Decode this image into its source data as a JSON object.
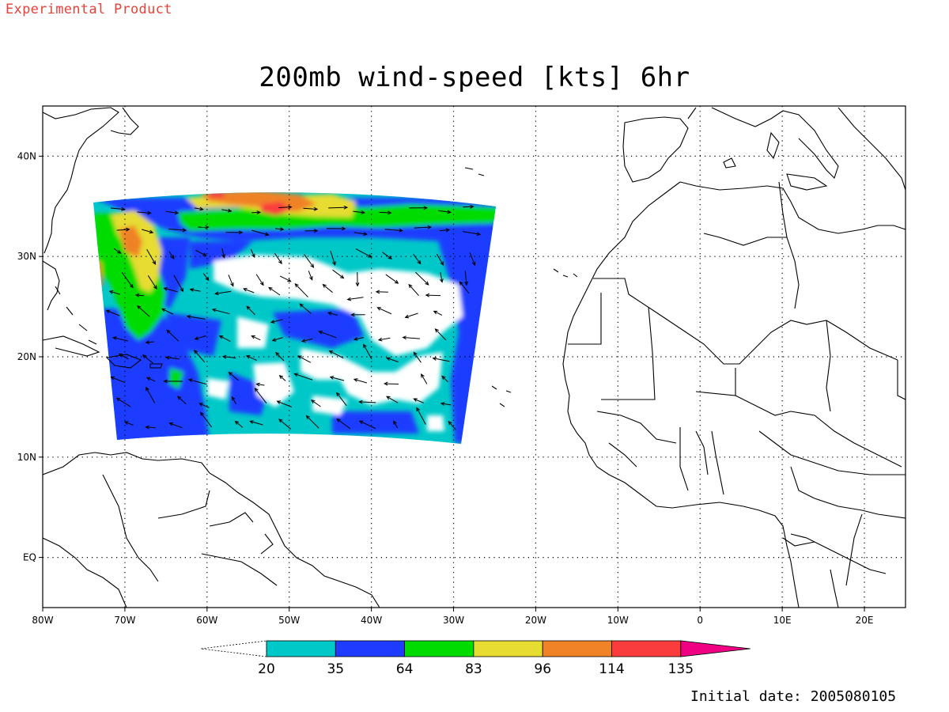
{
  "watermark": "Experimental Product",
  "title": "200mb wind-speed [kts] 6hr",
  "initial_date": {
    "label": "Initial date:",
    "value": "2005080105"
  },
  "map": {
    "lon_range": [
      -80,
      25
    ],
    "lat_range": [
      -5,
      45
    ],
    "x_ticks": [
      {
        "value": -80,
        "label": "80W"
      },
      {
        "value": -70,
        "label": "70W"
      },
      {
        "value": -60,
        "label": "60W"
      },
      {
        "value": -50,
        "label": "50W"
      },
      {
        "value": -40,
        "label": "40W"
      },
      {
        "value": -30,
        "label": "30W"
      },
      {
        "value": -20,
        "label": "20W"
      },
      {
        "value": -10,
        "label": "10W"
      },
      {
        "value": 0,
        "label": "0"
      },
      {
        "value": 10,
        "label": "10E"
      },
      {
        "value": 20,
        "label": "20E"
      }
    ],
    "y_ticks": [
      {
        "value": 40,
        "label": "40N"
      },
      {
        "value": 30,
        "label": "30N"
      },
      {
        "value": 20,
        "label": "20N"
      },
      {
        "value": 10,
        "label": "10N"
      },
      {
        "value": 0,
        "label": "EQ"
      }
    ],
    "grid": "dotted"
  },
  "colorbar": {
    "thresholds": [
      "20",
      "35",
      "64",
      "83",
      "96",
      "114",
      "135"
    ],
    "colors": [
      "#00c8c8",
      "#1e3cff",
      "#00dc00",
      "#e6dc32",
      "#f08228",
      "#fa3c3c",
      "#f00082"
    ],
    "below_color": "#ffffff"
  }
}
